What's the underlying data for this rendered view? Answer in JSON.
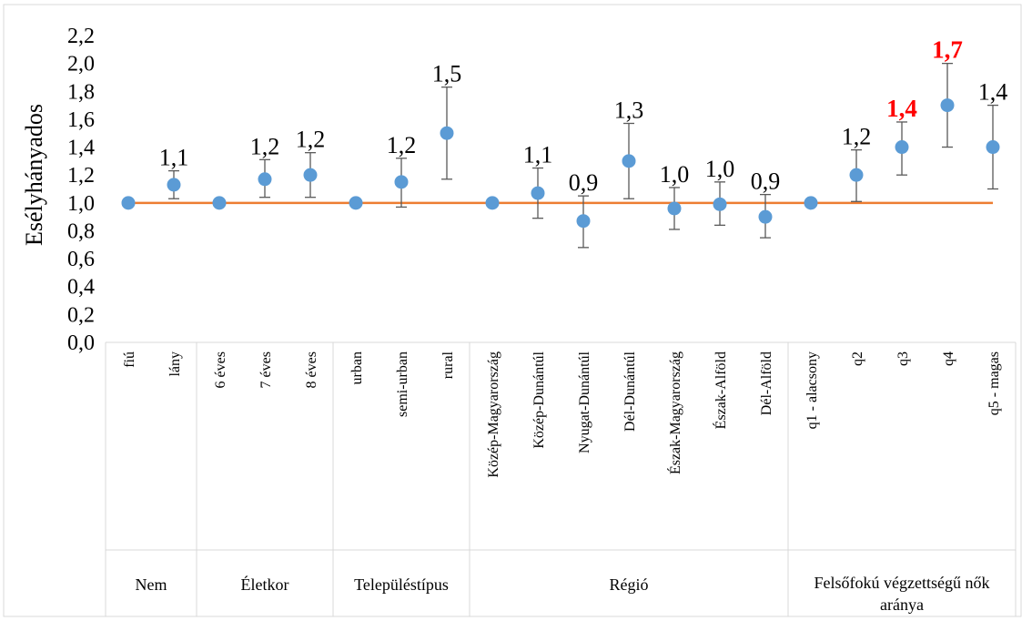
{
  "chart_data": {
    "type": "scatter",
    "ylabel": "Esélyhányados",
    "ylim": [
      0,
      2.2
    ],
    "ytick_step": 0.2,
    "yticks": [
      "0,0",
      "0,2",
      "0,4",
      "0,6",
      "0,8",
      "1,0",
      "1,2",
      "1,4",
      "1,6",
      "1,8",
      "2,0",
      "2,2"
    ],
    "reference_line": 1.0,
    "categories": [
      "fiú",
      "lány",
      "6 éves",
      "7 éves",
      "8 éves",
      "urban",
      "semi-urban",
      "rural",
      "Közép-Magyarország",
      "Közép-Dunántúl",
      "Nyugat-Dunántúl",
      "Dél-Dunántúl",
      "Észak-Magyarország",
      "Észak-Alföld",
      "Dél-Alföld",
      "q1 - alacsony",
      "q2",
      "q3",
      "q4",
      "q5 - magas"
    ],
    "values": [
      1.0,
      1.13,
      1.0,
      1.17,
      1.2,
      1.0,
      1.15,
      1.5,
      1.0,
      1.07,
      0.87,
      1.3,
      0.96,
      0.99,
      0.9,
      1.0,
      1.2,
      1.4,
      1.7,
      1.4
    ],
    "err_low": [
      null,
      1.03,
      null,
      1.04,
      1.04,
      null,
      0.97,
      1.17,
      null,
      0.89,
      0.68,
      1.03,
      0.81,
      0.84,
      0.75,
      null,
      1.01,
      1.2,
      1.4,
      1.1
    ],
    "err_high": [
      null,
      1.23,
      null,
      1.31,
      1.36,
      null,
      1.32,
      1.83,
      null,
      1.25,
      1.05,
      1.57,
      1.11,
      1.15,
      1.06,
      null,
      1.38,
      1.58,
      2.0,
      1.7
    ],
    "data_labels": [
      null,
      "1,1",
      null,
      "1,2",
      "1,2",
      null,
      "1,2",
      "1,5",
      null,
      "1,1",
      "0,9",
      "1,3",
      "1,0",
      "1,0",
      "0,9",
      null,
      "1,2",
      "1,4",
      "1,7",
      "1,4"
    ],
    "highlight_labels": [
      false,
      false,
      false,
      false,
      false,
      false,
      false,
      false,
      false,
      false,
      false,
      false,
      false,
      false,
      false,
      false,
      false,
      true,
      true,
      false
    ],
    "groups": [
      {
        "name": "Nem",
        "start": 0,
        "count": 2
      },
      {
        "name": "Életkor",
        "start": 2,
        "count": 3
      },
      {
        "name": "Településtípus",
        "start": 5,
        "count": 3
      },
      {
        "name": "Régió",
        "start": 8,
        "count": 7
      },
      {
        "name": "Felsőfokú végzettségű nők aránya",
        "start": 15,
        "count": 5
      }
    ],
    "colors": {
      "marker": "#5B9BD5",
      "reference_line": "#ED7D31",
      "highlight_label": "#FF0000",
      "error_bar": "#595959",
      "axis": "#D9D9D9"
    }
  }
}
